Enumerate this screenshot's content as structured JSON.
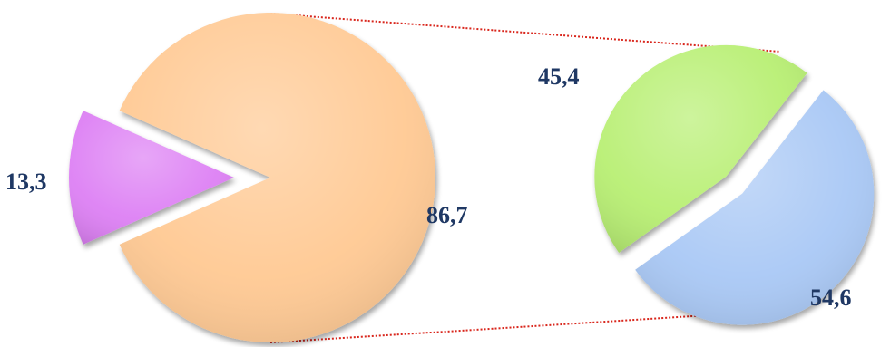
{
  "chart_data": [
    {
      "type": "pie",
      "categories": [
        "",
        ""
      ],
      "values": [
        86.7,
        13.3
      ],
      "labels": [
        "86,7",
        "13,3"
      ],
      "colors": [
        "#ffc993",
        "#dd80f4"
      ]
    },
    {
      "type": "pie",
      "categories": [
        "",
        ""
      ],
      "values": [
        45.4,
        54.6
      ],
      "labels": [
        "45,4",
        "54,6"
      ],
      "colors": [
        "#b8ef73",
        "#a9c8f5"
      ]
    }
  ],
  "connector_color": "#d9261c",
  "label_color": "#1f3864"
}
